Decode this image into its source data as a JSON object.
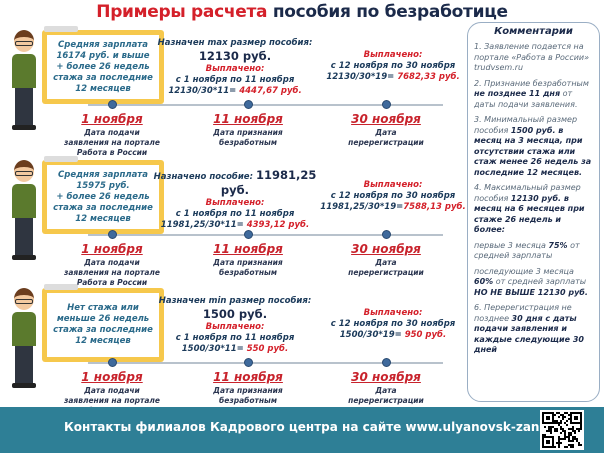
{
  "title": {
    "part1": "Примеры расчета",
    "part2": " пособия по безработице"
  },
  "sections": [
    {
      "box_lines": [
        "Средняя зарплата",
        "16174  руб. и выше",
        "+ более 26 недель",
        "стажа за последние",
        "12 месяцев"
      ],
      "assigned_label": "Назначен max размер пособия:",
      "assigned_amount": "12130 руб.",
      "paid1": {
        "label": "Выплачено:",
        "period": "с 1 ноября по 11 ноября",
        "formula": "12130/30*11= ",
        "result": "4447,67 руб."
      },
      "paid2": {
        "label": "Выплачено:",
        "period": "с 12 ноября по 30 ноября",
        "formula": "12130/30*19= ",
        "result": "7682,33 руб."
      },
      "dates": [
        {
          "date": "1 ноября",
          "desc": "Дата подачи заявления на портале Работа в России"
        },
        {
          "date": "11 ноября",
          "desc": "Дата признания безработным"
        },
        {
          "date": "30 ноября",
          "desc": "Дата перерегистрации"
        }
      ]
    },
    {
      "box_lines": [
        "Средняя зарплата",
        "15975 руб.",
        "+ более 26 недель",
        "стажа за последние",
        "12 месяцев"
      ],
      "assigned_label": "Назначено пособие:",
      "assigned_amount": "11981,25 руб.",
      "paid1": {
        "label": "Выплачено:",
        "period": "с 1 ноября по 11 ноября",
        "formula": "11981,25/30*11= ",
        "result": "4393,12 руб."
      },
      "paid2": {
        "label": "Выплачено:",
        "period": "с 12 ноября по 30 ноября",
        "formula": "11981,25/30*19=",
        "result": "7588,13 руб."
      },
      "dates": [
        {
          "date": "1 ноября",
          "desc": "Дата подачи заявления на портале Работа в России"
        },
        {
          "date": "11 ноября",
          "desc": "Дата признания безработным"
        },
        {
          "date": "30 ноября",
          "desc": "Дата перерегистрации"
        }
      ]
    },
    {
      "box_lines": [
        "Нет стажа или",
        "меньше 26 недель",
        "стажа за последние",
        "12 месяцев"
      ],
      "assigned_label": "Назначен min размер пособия:",
      "assigned_amount": "1500 руб.",
      "paid1": {
        "label": "Выплачено:",
        "period": "с 1 ноября по 11 ноября",
        "formula": "1500/30*11= ",
        "result": "550 руб."
      },
      "paid2": {
        "label": "Выплачено:",
        "period": "с 12 ноября по 30 ноября",
        "formula": "1500/30*19= ",
        "result": "950 руб."
      },
      "dates": [
        {
          "date": "1 ноября",
          "desc": "Дата подачи заявления на портале Работа в России"
        },
        {
          "date": "11 ноября",
          "desc": "Дата признания безработным"
        },
        {
          "date": "30 ноября",
          "desc": "Дата перерегистрации"
        }
      ]
    }
  ],
  "comments": {
    "title": "Комментарии",
    "items": [
      [
        {
          "t": "1. Заявление подается на портале «Работа в России» trudvsem.ru",
          "b": false
        }
      ],
      [
        {
          "t": "2. Признание безработным ",
          "b": false
        },
        {
          "t": "не позднее 11 дня",
          "b": true
        },
        {
          "t": " от даты подачи заявления.",
          "b": false
        }
      ],
      [
        {
          "t": "3. Минимальный размер пособия ",
          "b": false
        },
        {
          "t": "1500 руб. в месяц на 3 месяца, при отсутствии стажа или стаж менее 26 недель за последние 12 месяцев.",
          "b": true
        }
      ],
      [
        {
          "t": "4. Максимальный размер пособия  ",
          "b": false
        },
        {
          "t": "12130 руб. в месяц на 6 месяцев при стаже 26 недель и более:",
          "b": true
        }
      ],
      [
        {
          "t": "первые 3 месяца ",
          "b": false
        },
        {
          "t": "75%",
          "b": true
        },
        {
          "t": " от средней зарплаты",
          "b": false
        }
      ],
      [
        {
          "t": "последующие  3 месяца ",
          "b": false
        },
        {
          "t": "60%",
          "b": true
        },
        {
          "t": " от средней зарплаты ",
          "b": false
        },
        {
          "t": "НО НЕ ВЫШЕ 12130 руб.",
          "b": true
        }
      ],
      [
        {
          "t": "6. Перерегистрация не позднее ",
          "b": false
        },
        {
          "t": "30 дня с даты подачи заявления и каждые  следующие 30 дней",
          "b": true
        }
      ]
    ]
  },
  "footer": {
    "text": "Контакты филиалов Кадрового центра на сайте www.ulyanovsk-zan.ru",
    "qr_icon": "qr-code-icon"
  },
  "colors": {
    "accent_red": "#d4202a",
    "navy": "#1b2a4a",
    "footer": "#2e7f96",
    "clipboard": "#f6c84c"
  }
}
